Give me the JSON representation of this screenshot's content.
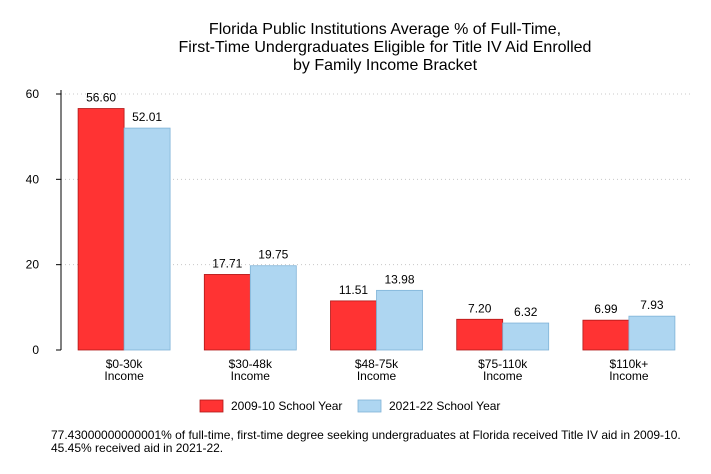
{
  "chart_data": {
    "type": "bar",
    "title_lines": [
      "Florida Public Institutions Average % of Full-Time,",
      "First-Time Undergraduates Eligible for Title IV Aid Enrolled",
      "by Family Income Bracket"
    ],
    "categories": [
      [
        "$0-30k",
        "Income"
      ],
      [
        "$30-48k",
        "Income"
      ],
      [
        "$48-75k",
        "Income"
      ],
      [
        "$75-110k",
        "Income"
      ],
      [
        "$110k+",
        "Income"
      ]
    ],
    "series": [
      {
        "name": "2009-10 School Year",
        "color": "#ff3333",
        "values": [
          56.6,
          17.71,
          11.51,
          7.2,
          6.99
        ],
        "labels": [
          "56.60",
          "17.71",
          "11.51",
          "7.20",
          "6.99"
        ]
      },
      {
        "name": "2021-22 School Year",
        "color": "#aed6f1",
        "values": [
          52.01,
          19.75,
          13.98,
          6.32,
          7.93
        ],
        "labels": [
          "52.01",
          "19.75",
          "13.98",
          "6.32",
          "7.93"
        ]
      }
    ],
    "ylim": [
      0,
      60
    ],
    "yticks": [
      0,
      20,
      40,
      60
    ],
    "grid": true,
    "legend_position": "bottom"
  },
  "footnote": "77.43000000000001% of full-time, first-time degree seeking undergraduates at Florida received Title IV aid in 2009-10. 45.45% received aid in 2021-22."
}
